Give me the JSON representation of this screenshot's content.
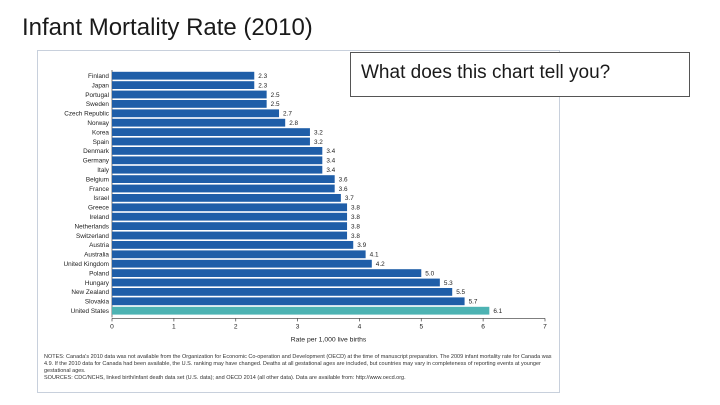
{
  "slide": {
    "title": "Infant Mortality Rate (2010)",
    "prompt": "What does this chart tell you?"
  },
  "notes": {
    "line1": "NOTES: Canada's 2010 data was not available from the Organization for Economic Co-operation and Development (OECD) at the time of manuscript preparation. The 2009 infant mortality rate for Canada was 4.9. If the 2010 data for Canada had been available, the U.S. ranking may have changed. Deaths at all gestational ages are included, but countries may vary in completeness of reporting events at younger gestational ages.",
    "line2": "SOURCES: CDC/NCHS, linked birth/infant death data set (U.S. data); and OECD 2014 (all other data). Data are available from: http://www.oecd.org."
  },
  "colors": {
    "bar": "#1f5ea8",
    "highlight": "#4db3b3",
    "axis": "#555555",
    "text": "#222222"
  },
  "chart_data": {
    "type": "bar",
    "orientation": "horizontal",
    "title": "Infant Mortality Rate (2010)",
    "xlabel": "Rate per 1,000 live births",
    "ylabel": "",
    "xlim": [
      0,
      7
    ],
    "xticks": [
      "0",
      "1",
      "2",
      "3",
      "4",
      "5",
      "6",
      "7"
    ],
    "highlight": "United States",
    "categories": [
      "Finland",
      "Japan",
      "Portugal",
      "Sweden",
      "Czech Republic",
      "Norway",
      "Korea",
      "Spain",
      "Denmark",
      "Germany",
      "Italy",
      "Belgium",
      "France",
      "Israel",
      "Greece",
      "Ireland",
      "Netherlands",
      "Switzerland",
      "Austria",
      "Australia",
      "United Kingdom",
      "Poland",
      "Hungary",
      "New Zealand",
      "Slovakia",
      "United States"
    ],
    "values": [
      2.3,
      2.3,
      2.5,
      2.5,
      2.7,
      2.8,
      3.2,
      3.2,
      3.4,
      3.4,
      3.4,
      3.6,
      3.6,
      3.7,
      3.8,
      3.8,
      3.8,
      3.8,
      3.9,
      4.1,
      4.2,
      5.0,
      5.3,
      5.5,
      5.7,
      6.1
    ],
    "labels": [
      "2.3",
      "2.3",
      "2.5",
      "2.5",
      "2.7",
      "2.8",
      "3.2",
      "3.2",
      "3.4",
      "3.4",
      "3.4",
      "3.6",
      "3.6",
      "3.7",
      "3.8",
      "3.8",
      "3.8",
      "3.8",
      "3.9",
      "4.1",
      "4.2",
      "5.0",
      "5.3",
      "5.5",
      "5.7",
      "6.1"
    ]
  }
}
